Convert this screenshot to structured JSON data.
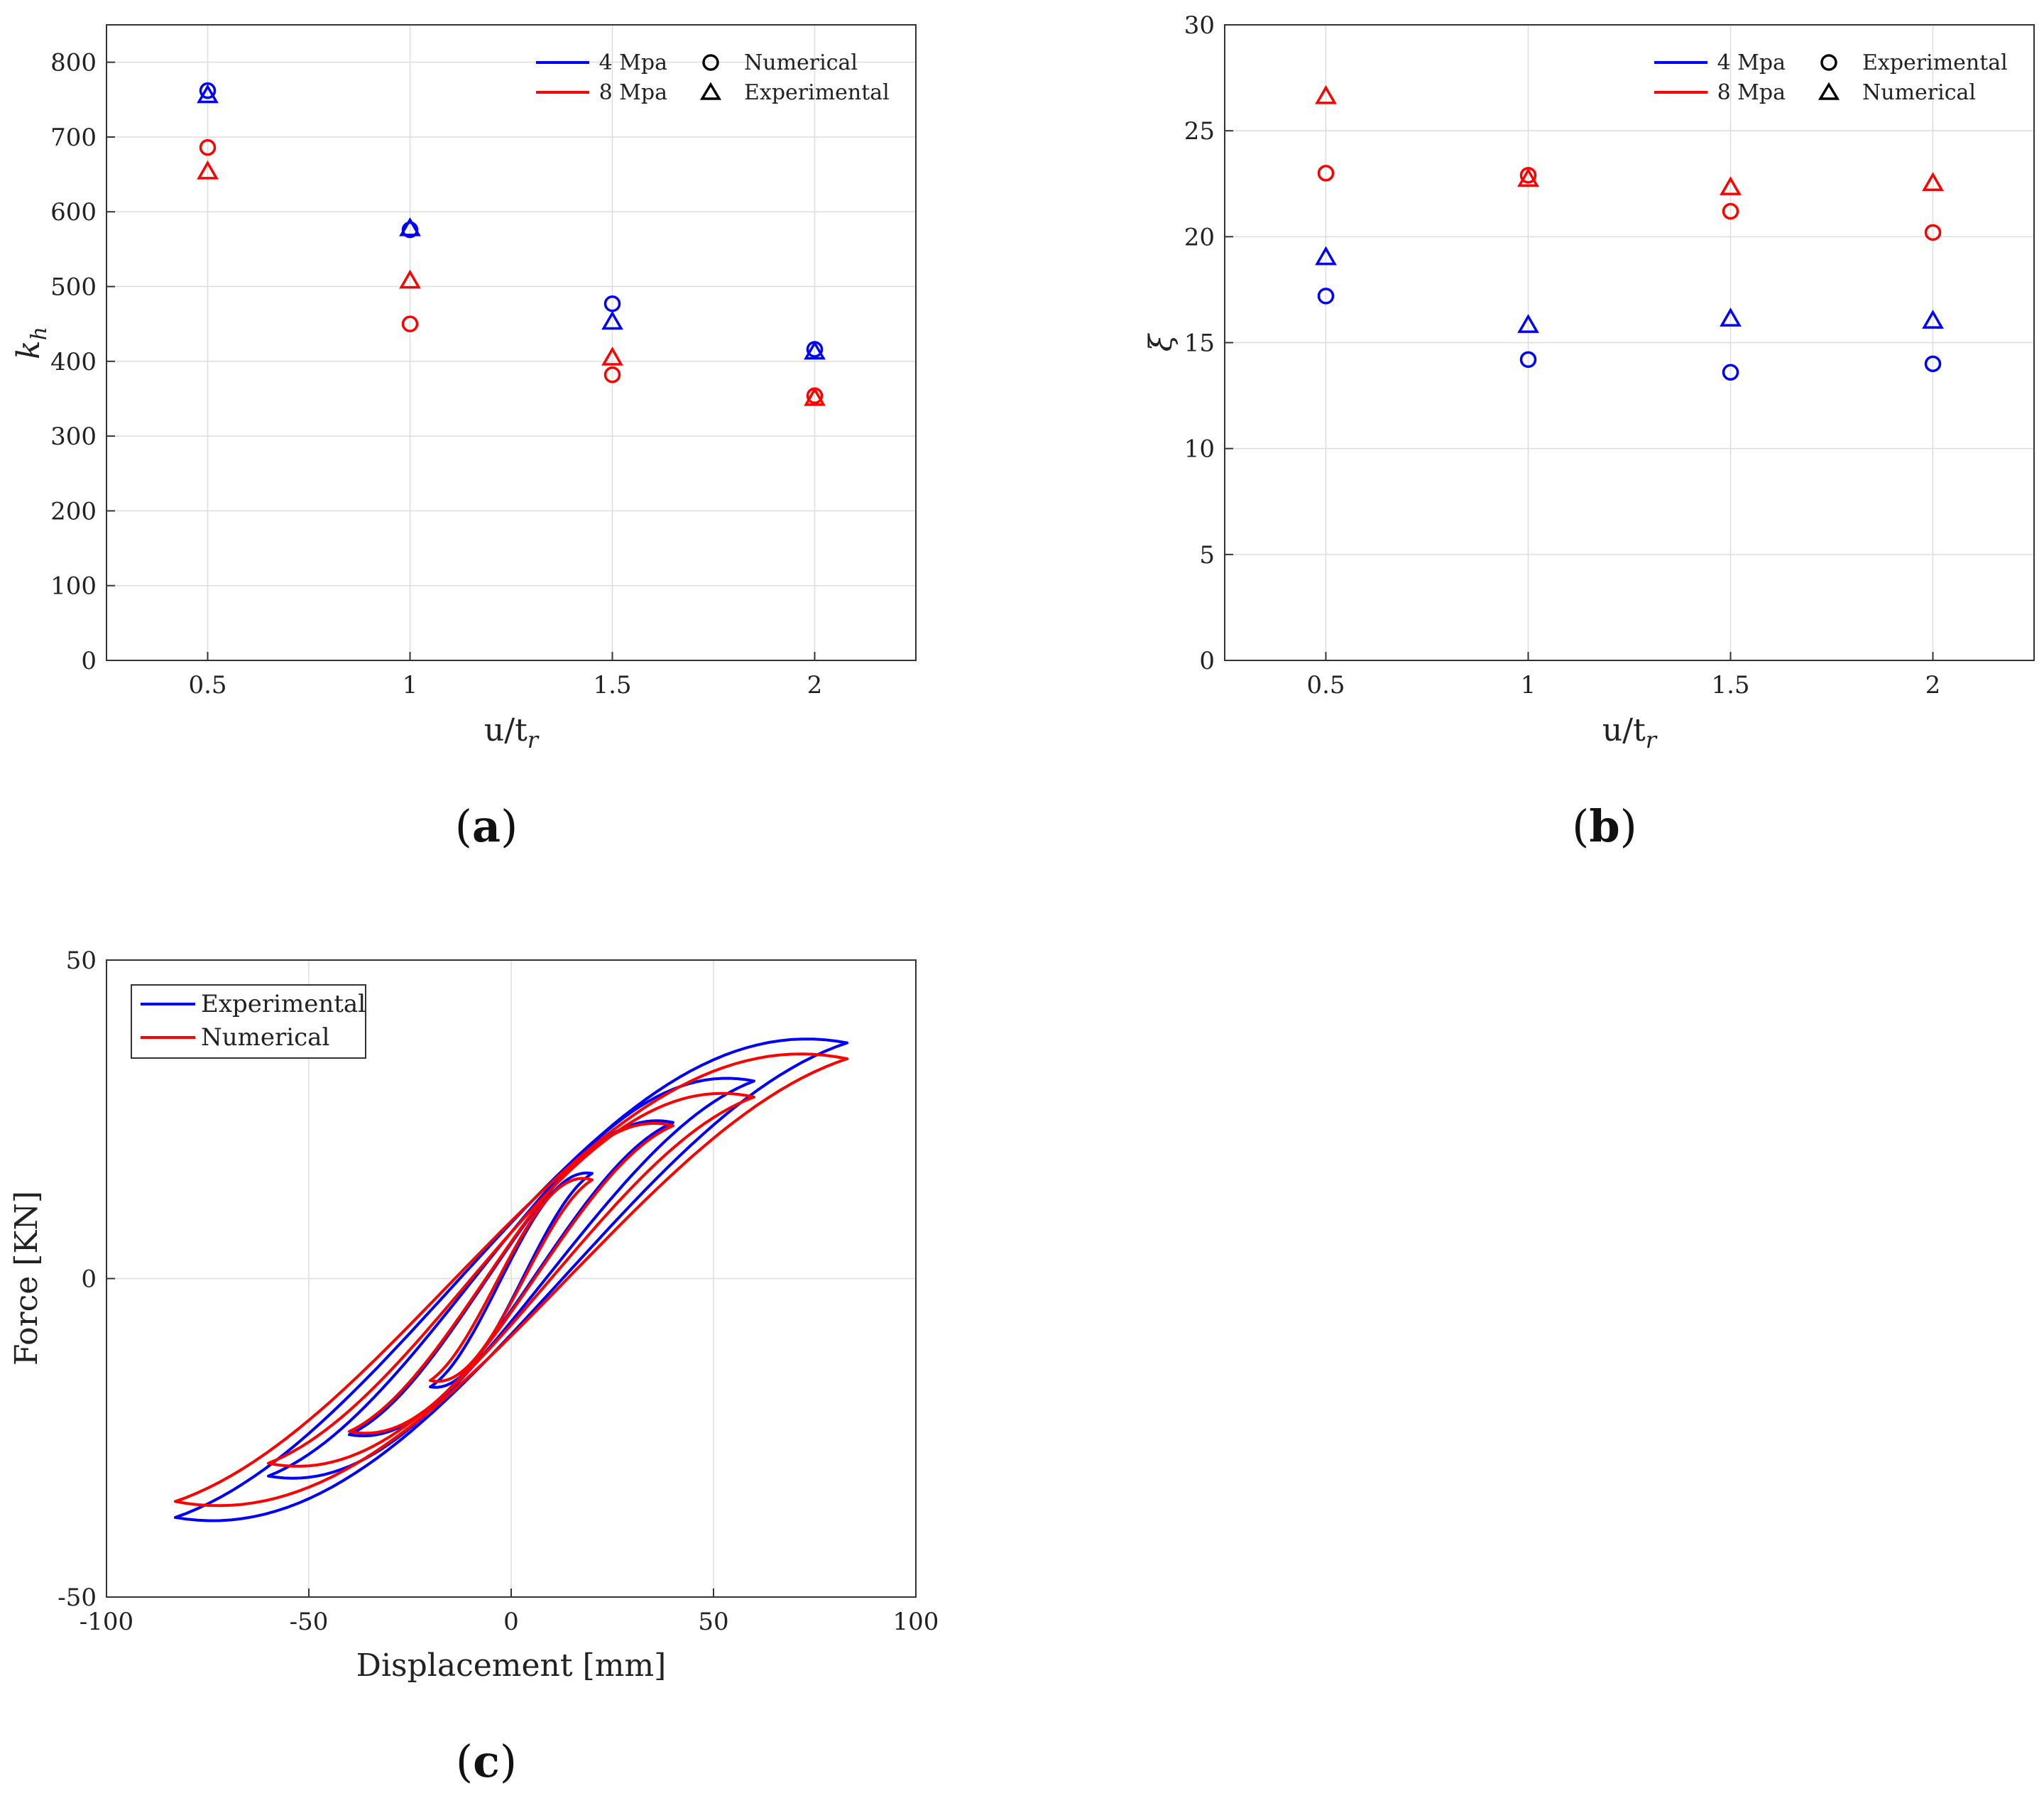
{
  "colors": {
    "blue": "#0000ff",
    "red": "#ff0000",
    "grid": "#dddddd",
    "axis": "#333333"
  },
  "chart_data": [
    {
      "type": "scatter",
      "panel_label": "(a)",
      "xlabel": "u/t",
      "xlabel_sub": "r",
      "ylabel": "k",
      "ylabel_sub": "h",
      "xlim": [
        0.25,
        2.25
      ],
      "ylim": [
        0,
        850
      ],
      "x_ticks": [
        0.5,
        1,
        1.5,
        2
      ],
      "x_tick_labels": [
        "0.5",
        "1",
        "1.5",
        "2"
      ],
      "y_ticks": [
        0,
        100,
        200,
        300,
        400,
        500,
        600,
        700,
        800
      ],
      "y_tick_labels": [
        "0",
        "100",
        "200",
        "300",
        "400",
        "500",
        "600",
        "700",
        "800"
      ],
      "legend": {
        "placement": "top-right",
        "colors": [
          "4 Mpa",
          "8 Mpa"
        ],
        "markers": [
          "Numerical",
          "Experimental"
        ]
      },
      "series": [
        {
          "name": "4 Mpa Numerical",
          "color": "blue",
          "marker": "circle",
          "x": [
            0.5,
            1,
            1.5,
            2
          ],
          "y": [
            762,
            576,
            477,
            416
          ]
        },
        {
          "name": "4 Mpa Experimental",
          "color": "blue",
          "marker": "triangle",
          "x": [
            0.5,
            1,
            1.5,
            2
          ],
          "y": [
            755,
            577,
            452,
            412
          ]
        },
        {
          "name": "8 Mpa Numerical",
          "color": "red",
          "marker": "circle",
          "x": [
            0.5,
            1,
            1.5,
            2
          ],
          "y": [
            686,
            450,
            382,
            354
          ]
        },
        {
          "name": "8 Mpa Experimental",
          "color": "red",
          "marker": "triangle",
          "x": [
            0.5,
            1,
            1.5,
            2
          ],
          "y": [
            653,
            507,
            404,
            350
          ]
        }
      ]
    },
    {
      "type": "scatter",
      "panel_label": "(b)",
      "xlabel": "u/t",
      "xlabel_sub": "r",
      "ylabel": "ξ",
      "xlim": [
        0.25,
        2.25
      ],
      "ylim": [
        0,
        30
      ],
      "x_ticks": [
        0.5,
        1,
        1.5,
        2
      ],
      "x_tick_labels": [
        "0.5",
        "1",
        "1.5",
        "2"
      ],
      "y_ticks": [
        0,
        5,
        10,
        15,
        20,
        25,
        30
      ],
      "y_tick_labels": [
        "0",
        "5",
        "10",
        "15",
        "20",
        "25",
        "30"
      ],
      "legend": {
        "placement": "top-right",
        "colors": [
          "4 Mpa",
          "8 Mpa"
        ],
        "markers": [
          "Experimental",
          "Numerical"
        ]
      },
      "series": [
        {
          "name": "4 Mpa Experimental",
          "color": "blue",
          "marker": "circle",
          "x": [
            0.5,
            1,
            1.5,
            2
          ],
          "y": [
            17.2,
            14.2,
            13.6,
            14.0
          ]
        },
        {
          "name": "4 Mpa Numerical",
          "color": "blue",
          "marker": "triangle",
          "x": [
            0.5,
            1,
            1.5,
            2
          ],
          "y": [
            19.0,
            15.8,
            16.1,
            16.0
          ]
        },
        {
          "name": "8 Mpa Experimental",
          "color": "red",
          "marker": "circle",
          "x": [
            0.5,
            1,
            1.5,
            2
          ],
          "y": [
            23.0,
            22.9,
            21.2,
            20.2
          ]
        },
        {
          "name": "8 Mpa Numerical",
          "color": "red",
          "marker": "triangle",
          "x": [
            0.5,
            1,
            1.5,
            2
          ],
          "y": [
            26.6,
            22.7,
            22.3,
            22.5
          ]
        }
      ]
    },
    {
      "type": "line",
      "panel_label": "(c)",
      "xlabel": "Displacement [mm]",
      "ylabel": "Force [KN]",
      "xlim": [
        -100,
        100
      ],
      "ylim": [
        -50,
        50
      ],
      "x_ticks": [
        -100,
        -50,
        0,
        50,
        100
      ],
      "x_tick_labels": [
        "-100",
        "-50",
        "0",
        "50",
        "100"
      ],
      "y_ticks": [
        -50,
        0,
        50
      ],
      "y_tick_labels": [
        "-50",
        "0",
        "50"
      ],
      "legend": {
        "placement": "top-left",
        "entries": [
          "Experimental",
          "Numerical"
        ]
      },
      "series": [
        {
          "name": "Experimental",
          "color": "blue",
          "loops": [
            {
              "amp": 20,
              "fmax": 16.5,
              "fmin": -17.0,
              "up_mid": 1.5,
              "down_mid": -1.5,
              "spread": 3.5
            },
            {
              "amp": 40,
              "fmax": 24.5,
              "fmin": -24.5,
              "up_mid": 3.5,
              "down_mid": -3.0,
              "spread": 4.0
            },
            {
              "amp": 60,
              "fmax": 31.0,
              "fmin": -31.0,
              "up_mid": 5.0,
              "down_mid": -4.5,
              "spread": 4.5
            },
            {
              "amp": 83,
              "fmax": 37.0,
              "fmin": -37.5,
              "up_mid": 6.5,
              "down_mid": -6.0,
              "spread": 5.0
            }
          ]
        },
        {
          "name": "Numerical",
          "color": "red",
          "loops": [
            {
              "amp": 20,
              "fmax": 15.5,
              "fmin": -16.0,
              "up_mid": 2.5,
              "down_mid": -2.0,
              "spread": 3.0
            },
            {
              "amp": 40,
              "fmax": 24.0,
              "fmin": -24.0,
              "up_mid": 4.0,
              "down_mid": -3.5,
              "spread": 3.5
            },
            {
              "amp": 60,
              "fmax": 28.5,
              "fmin": -29.0,
              "up_mid": 5.5,
              "down_mid": -5.0,
              "spread": 4.0
            },
            {
              "amp": 83,
              "fmax": 34.5,
              "fmin": -35.0,
              "up_mid": 7.0,
              "down_mid": -6.5,
              "spread": 4.5
            }
          ]
        }
      ]
    }
  ]
}
